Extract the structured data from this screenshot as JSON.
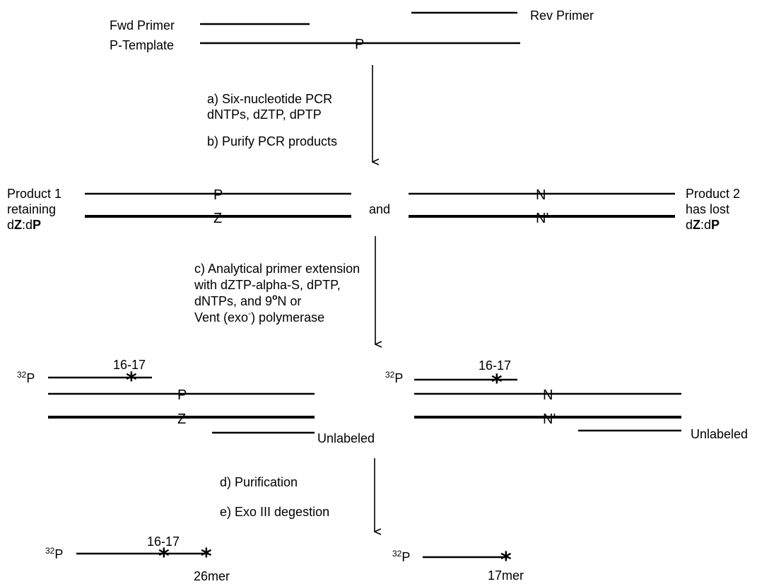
{
  "top": {
    "fwd_primer": "Fwd Primer",
    "rev_primer": "Rev Primer",
    "template": "P-Template",
    "template_base": "P"
  },
  "step_ab": {
    "a_line1": "a) Six-nucleotide PCR",
    "a_line2": "dNTPs, dZTP, dPTP",
    "b": "b) Purify PCR products"
  },
  "products": {
    "p1_line1": "Product 1",
    "p1_line2": "retaining",
    "p1_d1": "d",
    "p1_z": "Z",
    "p1_colon": ":d",
    "p1_p": "P",
    "p1_top_base": "P",
    "p1_bottom_base": "Z",
    "and": "and",
    "p2_top_base": "N",
    "p2_bottom_base": "N'",
    "p2_line1": "Product 2",
    "p2_line2": "has lost",
    "p2_d1": "d",
    "p2_z": "Z",
    "p2_colon": ":d",
    "p2_p": "P"
  },
  "step_c": {
    "line1": "c) Analytical primer extension",
    "line2": "with dZTP-alpha-S, dPTP,",
    "line3_pre": "dNTPs, and 9",
    "line3_sup": "o",
    "line3_post": "N or",
    "line4_pre": "Vent (exo",
    "line4_sup": "-",
    "line4_post": ") polymerase"
  },
  "extension": {
    "left_label_sup": "32",
    "left_label_main": "P",
    "left_pos": "16-17",
    "left_star": "*",
    "left_top_base": "P",
    "left_bottom_base": "Z",
    "left_unlabeled": "Unlabeled",
    "right_label_sup": "32",
    "right_label_main": "P",
    "right_pos": "16-17",
    "right_star": "*",
    "right_top_base": "N",
    "right_bottom_base": "N'",
    "right_unlabeled": "Unlabeled"
  },
  "step_de": {
    "d": "d) Purification",
    "e": "e) Exo III degestion"
  },
  "final": {
    "left_label_sup": "32",
    "left_label_main": "P",
    "left_pos": "16-17",
    "left_star1": "*",
    "left_star2": "*",
    "left_size": "26mer",
    "right_label_sup": "32",
    "right_label_main": "P",
    "right_star": "*",
    "right_size": "17mer"
  }
}
